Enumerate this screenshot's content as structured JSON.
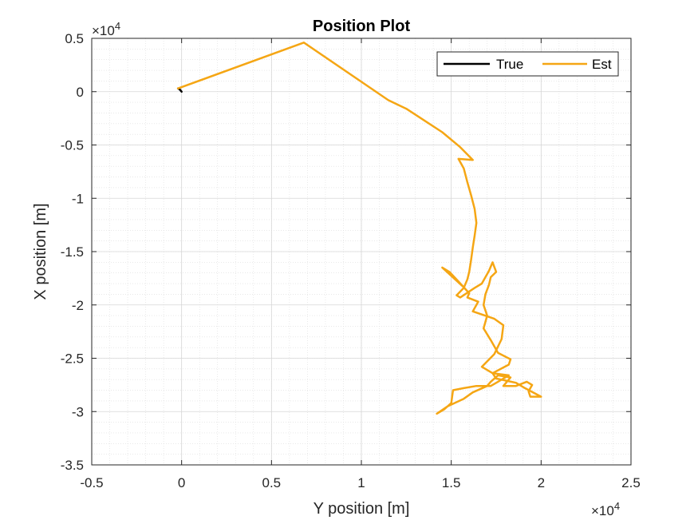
{
  "chart_data": {
    "type": "line",
    "title": "Position Plot",
    "xlabel": "Y position [m]",
    "ylabel": "X position [m]",
    "xlim": [
      -5000,
      25000
    ],
    "ylim": [
      -35000,
      5000
    ],
    "x_ticks": [
      -5000,
      0,
      5000,
      10000,
      15000,
      20000,
      25000
    ],
    "y_ticks": [
      -35000,
      -30000,
      -25000,
      -20000,
      -15000,
      -10000,
      -5000,
      0,
      5000
    ],
    "x_tick_labels": [
      "-0.5",
      "0",
      "0.5",
      "1",
      "1.5",
      "2",
      "2.5"
    ],
    "y_tick_labels": [
      "-3.5",
      "-3",
      "-2.5",
      "-2",
      "-1.5",
      "-1",
      "-0.5",
      "0",
      "0.5"
    ],
    "x_exponent": {
      "base": "×10",
      "power": "4"
    },
    "y_exponent": {
      "base": "×10",
      "power": "4"
    },
    "grid": true,
    "minor_grid": true,
    "legend_position": "top-right",
    "series": [
      {
        "name": "True",
        "color": "#000000",
        "x": [
          -200,
          -100,
          0
        ],
        "y": [
          300,
          200,
          0
        ]
      },
      {
        "name": "Est",
        "color": "#f5a614",
        "x": [
          -200,
          6800,
          11500,
          12500,
          13500,
          14500,
          15500,
          16200,
          15400,
          15700,
          15900,
          16100,
          16300,
          16400,
          16300,
          16200,
          16100,
          16000,
          15900,
          15700,
          15300,
          15500,
          16300,
          16700,
          16900,
          17100,
          17300,
          17500,
          17200,
          17100,
          16900,
          16800,
          17000,
          16800,
          17200,
          17600,
          18300,
          18200,
          17300,
          18200,
          17600,
          17200,
          16400,
          15700,
          15100,
          15000,
          14600,
          14200,
          14800,
          15700,
          16200,
          17000,
          17200,
          17600,
          18300,
          17900,
          18600,
          19200,
          19500,
          19300,
          19400,
          20000,
          19100,
          18600,
          17500,
          17300,
          16700,
          17400,
          17800,
          17900,
          17400,
          16200,
          16500,
          15900,
          16000,
          15400,
          14900,
          14500,
          15600
        ],
        "y": [
          300,
          4600,
          -800,
          -1600,
          -2700,
          -3800,
          -5200,
          -6400,
          -6300,
          -7200,
          -8500,
          -9700,
          -11000,
          -12300,
          -13500,
          -14600,
          -15800,
          -16900,
          -17600,
          -18400,
          -19100,
          -19300,
          -18400,
          -18000,
          -17400,
          -16800,
          -16000,
          -16900,
          -17400,
          -18100,
          -19000,
          -20000,
          -21000,
          -22200,
          -23300,
          -24500,
          -25100,
          -25600,
          -26400,
          -26600,
          -27200,
          -27600,
          -27600,
          -27800,
          -28000,
          -29200,
          -29800,
          -30200,
          -29500,
          -28800,
          -28200,
          -27600,
          -27200,
          -26600,
          -26800,
          -27600,
          -27600,
          -27200,
          -27500,
          -28100,
          -28600,
          -28600,
          -27800,
          -27300,
          -26900,
          -26400,
          -25800,
          -24600,
          -23200,
          -21900,
          -21300,
          -20600,
          -19700,
          -19300,
          -18900,
          -17800,
          -16900,
          -16500,
          -18200
        ]
      }
    ]
  }
}
